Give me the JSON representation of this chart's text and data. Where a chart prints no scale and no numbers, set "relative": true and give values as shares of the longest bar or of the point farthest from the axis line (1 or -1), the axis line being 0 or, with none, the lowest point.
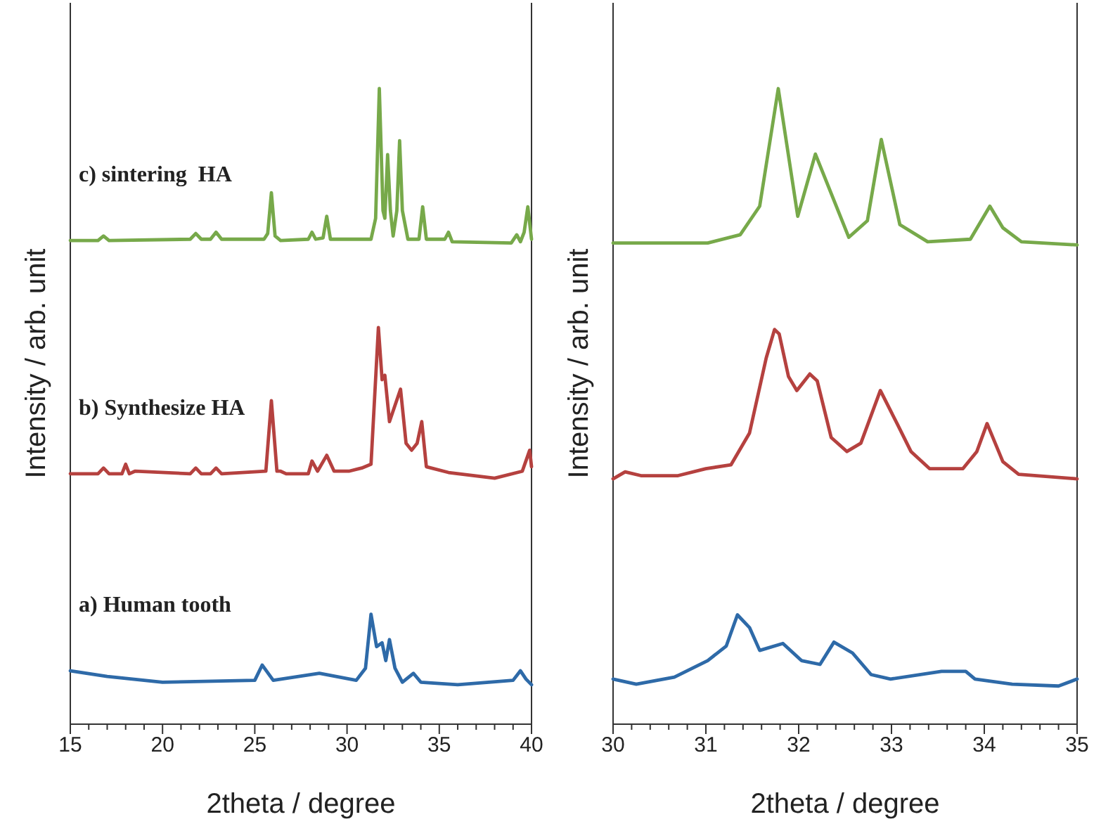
{
  "chart_data": [
    {
      "type": "line",
      "relative": true,
      "xlabel": "2theta / degree",
      "ylabel": "Intensity / arb. unit",
      "xlim": [
        15,
        40
      ],
      "xticks": [
        15,
        {
          "value": 16,
          "label": null
        },
        {
          "value": 17,
          "label": null
        },
        {
          "value": 18,
          "label": null
        },
        {
          "value": 19,
          "label": null
        },
        20,
        {
          "value": 21,
          "label": null
        },
        {
          "value": 22,
          "label": null
        },
        {
          "value": 23,
          "label": null
        },
        {
          "value": 24,
          "label": null
        },
        25,
        {
          "value": 26,
          "label": null
        },
        {
          "value": 27,
          "label": null
        },
        {
          "value": 28,
          "label": null
        },
        {
          "value": 29,
          "label": null
        },
        30,
        {
          "value": 31,
          "label": null
        },
        {
          "value": 32,
          "label": null
        },
        {
          "value": 33,
          "label": null
        },
        {
          "value": 34,
          "label": null
        },
        35,
        {
          "value": 36,
          "label": null
        },
        {
          "value": 37,
          "label": null
        },
        {
          "value": 38,
          "label": null
        },
        {
          "value": 39,
          "label": null
        },
        40
      ],
      "marker": "none",
      "line_style": "solid",
      "series": [
        {
          "name": "c) sintering  HA",
          "color": "#77a94a",
          "x": [
            15,
            16.5,
            16.8,
            17.1,
            21.5,
            21.8,
            22.1,
            22.6,
            22.9,
            23.2,
            25.5,
            25.7,
            25.9,
            26.1,
            26.4,
            27.9,
            28.1,
            28.3,
            28.7,
            28.9,
            29.1,
            31.3,
            31.55,
            31.75,
            31.95,
            32.05,
            32.2,
            32.35,
            32.5,
            32.7,
            32.85,
            33.0,
            33.3,
            33.9,
            34.1,
            34.3,
            35.3,
            35.5,
            35.7,
            38.9,
            39.2,
            39.4,
            39.6,
            39.8,
            40
          ],
          "values": [
            0.761,
            0.761,
            0.768,
            0.761,
            0.763,
            0.772,
            0.763,
            0.763,
            0.774,
            0.763,
            0.763,
            0.772,
            0.836,
            0.768,
            0.761,
            0.763,
            0.774,
            0.763,
            0.765,
            0.799,
            0.763,
            0.763,
            0.796,
            1,
            0.808,
            0.796,
            0.896,
            0.808,
            0.768,
            0.808,
            0.918,
            0.808,
            0.763,
            0.763,
            0.814,
            0.763,
            0.763,
            0.774,
            0.759,
            0.757,
            0.77,
            0.759,
            0.774,
            0.814,
            0.763
          ]
        },
        {
          "name": "b) Synthesize HA",
          "color": "#b5413f",
          "x": [
            15,
            16.5,
            16.8,
            17.1,
            17.8,
            18.0,
            18.2,
            18.5,
            21.5,
            21.8,
            22.1,
            22.6,
            22.9,
            23.2,
            25.6,
            25.9,
            26.2,
            26.4,
            26.7,
            27.9,
            28.1,
            28.4,
            28.9,
            29.3,
            30.1,
            30.8,
            31.3,
            31.7,
            31.9,
            32.05,
            32.3,
            32.9,
            33.2,
            33.5,
            33.8,
            34.05,
            34.3,
            35.5,
            38,
            39.5,
            39.9,
            40
          ],
          "values": [
            0.394,
            0.394,
            0.403,
            0.394,
            0.394,
            0.409,
            0.394,
            0.398,
            0.394,
            0.403,
            0.394,
            0.394,
            0.403,
            0.394,
            0.398,
            0.509,
            0.398,
            0.398,
            0.394,
            0.394,
            0.414,
            0.398,
            0.423,
            0.398,
            0.398,
            0.403,
            0.409,
            0.624,
            0.542,
            0.549,
            0.476,
            0.527,
            0.442,
            0.431,
            0.442,
            0.476,
            0.405,
            0.396,
            0.387,
            0.398,
            0.431,
            0.405
          ]
        },
        {
          "name": "a) Human tooth",
          "color": "#2e6aa8",
          "x": [
            15,
            17,
            20,
            25.0,
            25.4,
            26,
            28.5,
            30.5,
            31.0,
            31.3,
            31.6,
            31.9,
            32.1,
            32.3,
            32.6,
            33.0,
            33.6,
            34,
            36,
            39.0,
            39.4,
            39.7,
            40
          ],
          "values": [
            0.084,
            0.075,
            0.066,
            0.069,
            0.093,
            0.069,
            0.08,
            0.069,
            0.088,
            0.173,
            0.122,
            0.128,
            0.1,
            0.133,
            0.088,
            0.066,
            0.08,
            0.066,
            0.062,
            0.069,
            0.084,
            0.071,
            0.062
          ]
        }
      ]
    },
    {
      "type": "line",
      "relative": true,
      "xlabel": "2theta / degree",
      "ylabel": "Intensity / arb. unit",
      "xlim": [
        30,
        35
      ],
      "xticks": [
        30,
        {
          "value": 30.2,
          "label": null
        },
        {
          "value": 30.4,
          "label": null
        },
        {
          "value": 30.6,
          "label": null
        },
        {
          "value": 30.8,
          "label": null
        },
        31,
        {
          "value": 31.2,
          "label": null
        },
        {
          "value": 31.4,
          "label": null
        },
        {
          "value": 31.6,
          "label": null
        },
        {
          "value": 31.8,
          "label": null
        },
        32,
        {
          "value": 32.2,
          "label": null
        },
        {
          "value": 32.4,
          "label": null
        },
        {
          "value": 32.6,
          "label": null
        },
        {
          "value": 32.8,
          "label": null
        },
        33,
        {
          "value": 33.2,
          "label": null
        },
        {
          "value": 33.4,
          "label": null
        },
        {
          "value": 33.6,
          "label": null
        },
        {
          "value": 33.8,
          "label": null
        },
        34,
        {
          "value": 34.2,
          "label": null
        },
        {
          "value": 34.4,
          "label": null
        },
        {
          "value": 34.6,
          "label": null
        },
        {
          "value": 34.8,
          "label": null
        },
        35
      ],
      "marker": "none",
      "line_style": "solid",
      "series": [
        {
          "color": "#77a94a",
          "x": [
            30,
            30.8,
            31.02,
            31.37,
            31.58,
            31.78,
            31.99,
            32.18,
            32.54,
            32.74,
            32.89,
            33.09,
            33.39,
            33.85,
            34.06,
            34.2,
            34.4,
            35
          ],
          "values": [
            0.757,
            0.757,
            0.757,
            0.77,
            0.815,
            1,
            0.799,
            0.897,
            0.766,
            0.792,
            0.92,
            0.786,
            0.759,
            0.763,
            0.815,
            0.781,
            0.759,
            0.754
          ]
        },
        {
          "color": "#b5413f",
          "x": [
            30,
            30.13,
            30.3,
            30.7,
            31.0,
            31.27,
            31.47,
            31.65,
            31.74,
            31.79,
            31.89,
            31.98,
            32.12,
            32.2,
            32.35,
            32.52,
            32.67,
            32.88,
            33.06,
            33.21,
            33.41,
            33.77,
            33.92,
            34.03,
            34.2,
            34.37,
            35
          ],
          "values": [
            0.386,
            0.397,
            0.391,
            0.391,
            0.402,
            0.408,
            0.458,
            0.576,
            0.621,
            0.614,
            0.547,
            0.525,
            0.551,
            0.54,
            0.451,
            0.429,
            0.442,
            0.525,
            0.473,
            0.429,
            0.402,
            0.402,
            0.429,
            0.473,
            0.413,
            0.393,
            0.386
          ]
        },
        {
          "color": "#2e6aa8",
          "x": [
            30,
            30.25,
            30.66,
            31.02,
            31.22,
            31.34,
            31.47,
            31.58,
            31.83,
            32.03,
            32.23,
            32.38,
            32.58,
            32.78,
            32.99,
            33.54,
            33.8,
            33.9,
            34.3,
            34.8,
            35
          ],
          "values": [
            0.071,
            0.063,
            0.074,
            0.1,
            0.123,
            0.172,
            0.152,
            0.116,
            0.127,
            0.1,
            0.094,
            0.129,
            0.112,
            0.078,
            0.071,
            0.083,
            0.083,
            0.071,
            0.063,
            0.06,
            0.071
          ]
        }
      ]
    }
  ]
}
